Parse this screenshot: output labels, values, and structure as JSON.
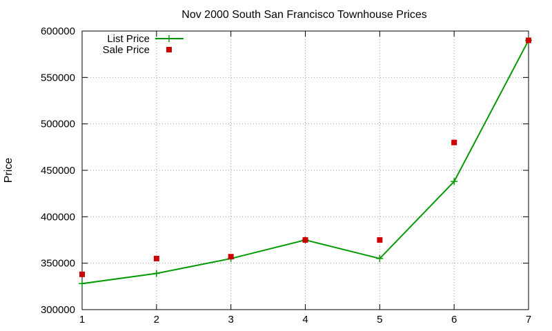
{
  "chart_data": {
    "type": "line",
    "title": "Nov 2000 South San Francisco Townhouse Prices",
    "xlabel": "",
    "ylabel": "Price",
    "xlim": [
      1,
      7
    ],
    "ylim": [
      300000,
      600000
    ],
    "x_ticks": [
      "1",
      "2",
      "3",
      "4",
      "5",
      "6",
      "7"
    ],
    "y_ticks": [
      "300000",
      "350000",
      "400000",
      "450000",
      "500000",
      "550000",
      "600000"
    ],
    "grid": true,
    "legend_position": "top-left",
    "x": [
      1,
      2,
      3,
      4,
      5,
      6,
      7
    ],
    "series": [
      {
        "name": "List Price",
        "style": "linespoints",
        "color": "#009900",
        "values": [
          328000,
          339000,
          355000,
          375000,
          355000,
          438000,
          590000
        ]
      },
      {
        "name": "Sale Price",
        "style": "points",
        "color": "#cc0000",
        "values": [
          338000,
          355000,
          357000,
          375000,
          375000,
          480000,
          590000
        ]
      }
    ]
  }
}
